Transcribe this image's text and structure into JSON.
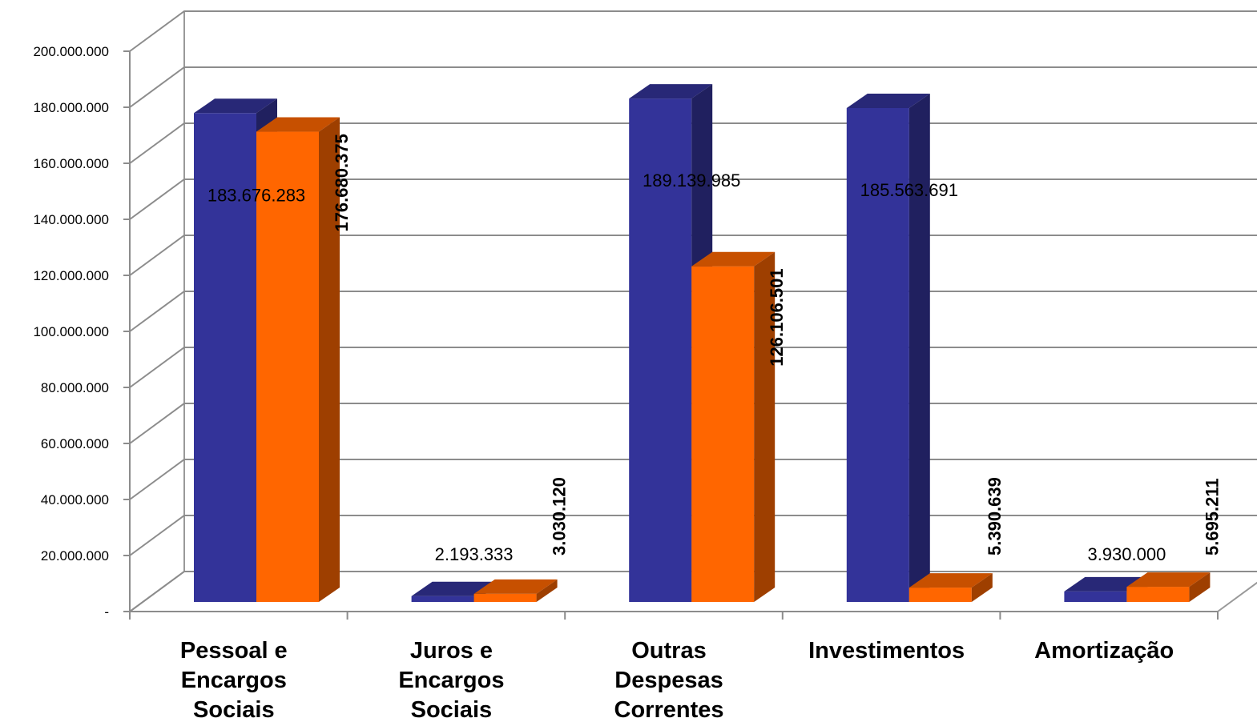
{
  "chart_data": {
    "type": "bar",
    "title": "",
    "xlabel": "",
    "ylabel": "",
    "ylim": [
      0,
      200000000
    ],
    "yticks": [
      {
        "value": 0,
        "label": "-"
      },
      {
        "value": 20000000,
        "label": "20.000.000"
      },
      {
        "value": 40000000,
        "label": "40.000.000"
      },
      {
        "value": 60000000,
        "label": "60.000.000"
      },
      {
        "value": 80000000,
        "label": "80.000.000"
      },
      {
        "value": 100000000,
        "label": "100.000.000"
      },
      {
        "value": 120000000,
        "label": "120.000.000"
      },
      {
        "value": 140000000,
        "label": "140.000.000"
      },
      {
        "value": 160000000,
        "label": "160.000.000"
      },
      {
        "value": 180000000,
        "label": "180.000.000"
      },
      {
        "value": 200000000,
        "label": "200.000.000"
      }
    ],
    "categories": [
      [
        "Pessoal e",
        "Encargos",
        "Sociais"
      ],
      [
        "Juros e",
        "Encargos",
        "Sociais"
      ],
      [
        "Outras",
        "Despesas",
        "Correntes"
      ],
      [
        "Investimentos"
      ],
      [
        "Amortização"
      ]
    ],
    "series": [
      {
        "color": "#333399",
        "values": [
          183676283,
          2193333,
          189139985,
          185563691,
          3930000
        ],
        "labels": [
          "183.676.283",
          "2.193.333",
          "189.139.985",
          "185.563.691",
          "3.930.000"
        ]
      },
      {
        "color": "#FF6600",
        "values": [
          176680375,
          3030120,
          126106501,
          5390639,
          5695211
        ],
        "labels": [
          "176.680.375",
          "3.030.120",
          "126.106.501",
          "5.390.639",
          "5.695.211"
        ]
      }
    ],
    "grid": true,
    "style": "3d-clustered-column"
  }
}
